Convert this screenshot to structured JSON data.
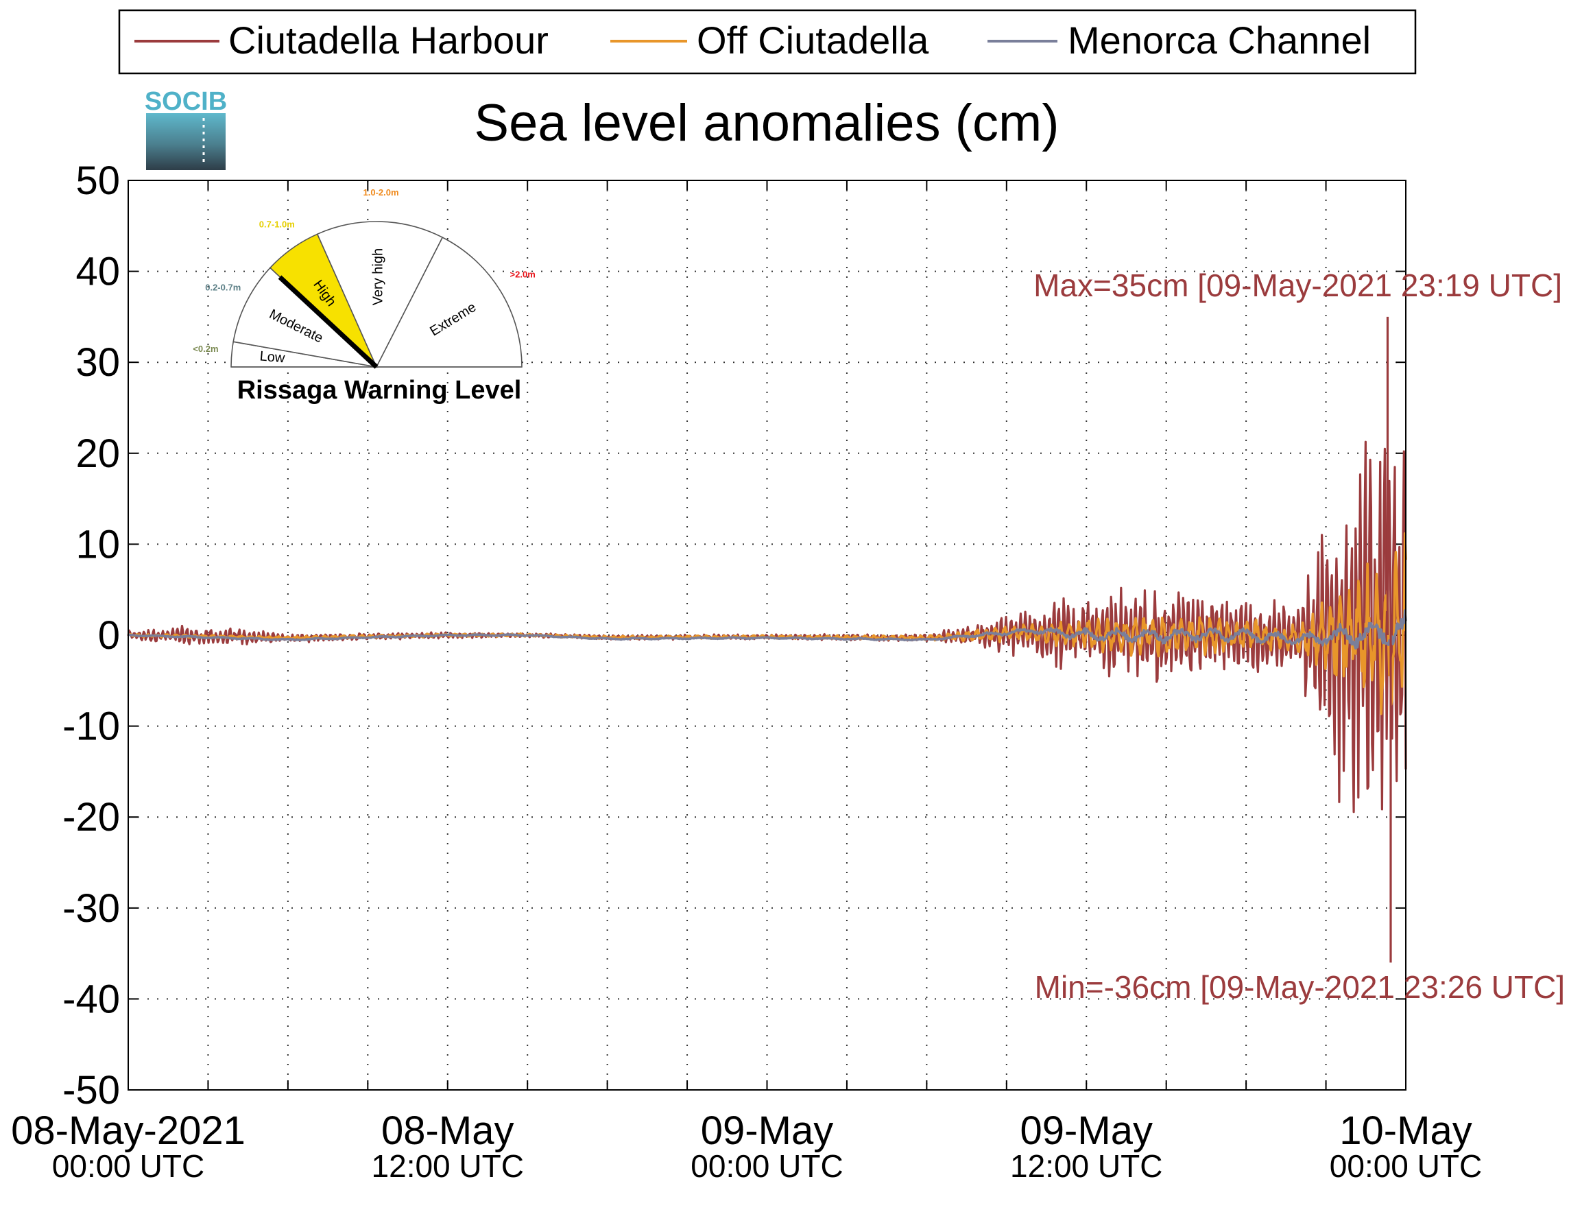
{
  "chart_data": {
    "type": "line",
    "title": "Sea level anomalies (cm)",
    "xlabel": "",
    "ylabel": "",
    "ylim": [
      -50,
      50
    ],
    "yticks": [
      50,
      40,
      30,
      20,
      10,
      0,
      -10,
      -20,
      -30,
      -40,
      -50
    ],
    "xlim": [
      "2021-05-08 00:00",
      "2021-05-10 00:00"
    ],
    "xticks": [
      {
        "line1": "08-May-2021",
        "line2": "00:00 UTC"
      },
      {
        "line1": "08-May",
        "line2": "12:00 UTC"
      },
      {
        "line1": "09-May",
        "line2": "00:00 UTC"
      },
      {
        "line1": "09-May",
        "line2": "12:00 UTC"
      },
      {
        "line1": "10-May",
        "line2": "00:00 UTC"
      }
    ],
    "grid": true,
    "legend_position": "top",
    "series": [
      {
        "name": "Ciutadella Harbour",
        "color": "#9b3b3d",
        "envelope": [
          [
            "2021-05-08 00:00",
            0.6
          ],
          [
            "2021-05-08 02:00",
            1.2
          ],
          [
            "2021-05-08 04:00",
            1.1
          ],
          [
            "2021-05-08 06:00",
            0.6
          ],
          [
            "2021-05-08 08:00",
            0.5
          ],
          [
            "2021-05-08 10:00",
            0.4
          ],
          [
            "2021-05-08 12:00",
            0.4
          ],
          [
            "2021-05-08 14:00",
            0.3
          ],
          [
            "2021-05-08 16:00",
            0.3
          ],
          [
            "2021-05-08 18:00",
            0.3
          ],
          [
            "2021-05-08 20:00",
            0.3
          ],
          [
            "2021-05-08 22:00",
            0.3
          ],
          [
            "2021-05-09 00:00",
            0.3
          ],
          [
            "2021-05-09 02:00",
            0.4
          ],
          [
            "2021-05-09 04:00",
            0.4
          ],
          [
            "2021-05-09 06:00",
            0.5
          ],
          [
            "2021-05-09 07:30",
            1.2
          ],
          [
            "2021-05-09 08:00",
            1.8
          ],
          [
            "2021-05-09 09:00",
            2.5
          ],
          [
            "2021-05-09 10:00",
            3.0
          ],
          [
            "2021-05-09 11:00",
            4.5
          ],
          [
            "2021-05-09 12:00",
            5.0
          ],
          [
            "2021-05-09 13:00",
            5.5
          ],
          [
            "2021-05-09 14:00",
            6.5
          ],
          [
            "2021-05-09 15:00",
            6.0
          ],
          [
            "2021-05-09 16:00",
            6.0
          ],
          [
            "2021-05-09 17:00",
            5.5
          ],
          [
            "2021-05-09 18:00",
            5.0
          ],
          [
            "2021-05-09 19:00",
            4.5
          ],
          [
            "2021-05-09 20:00",
            5.0
          ],
          [
            "2021-05-09 21:00",
            16.0
          ],
          [
            "2021-05-09 22:00",
            22.0
          ],
          [
            "2021-05-09 23:00",
            26.0
          ],
          [
            "2021-05-10 00:00",
            30.0
          ]
        ]
      },
      {
        "name": "Off Ciutadella",
        "color": "#e8962a",
        "envelope": [
          [
            "2021-05-08 00:00",
            0.2
          ],
          [
            "2021-05-09 00:00",
            0.2
          ],
          [
            "2021-05-09 06:00",
            0.3
          ],
          [
            "2021-05-09 08:00",
            0.8
          ],
          [
            "2021-05-09 10:00",
            1.2
          ],
          [
            "2021-05-09 12:00",
            2.0
          ],
          [
            "2021-05-09 14:00",
            3.0
          ],
          [
            "2021-05-09 16:00",
            2.5
          ],
          [
            "2021-05-09 18:00",
            2.0
          ],
          [
            "2021-05-09 20:00",
            2.0
          ],
          [
            "2021-05-09 21:00",
            5.0
          ],
          [
            "2021-05-09 22:00",
            8.0
          ],
          [
            "2021-05-09 23:00",
            11.0
          ],
          [
            "2021-05-10 00:00",
            12.0
          ]
        ]
      },
      {
        "name": "Menorca Channel",
        "color": "#7a7f9a",
        "envelope": [
          [
            "2021-05-08 00:00",
            0.1
          ],
          [
            "2021-05-09 06:00",
            0.1
          ],
          [
            "2021-05-09 10:00",
            0.4
          ],
          [
            "2021-05-09 12:00",
            0.8
          ],
          [
            "2021-05-09 16:00",
            1.0
          ],
          [
            "2021-05-09 20:00",
            0.8
          ],
          [
            "2021-05-09 22:00",
            1.5
          ],
          [
            "2021-05-10 00:00",
            2.5
          ]
        ]
      }
    ],
    "baseline": [
      [
        "2021-05-08 00:00",
        0
      ],
      [
        "2021-05-08 06:00",
        -0.5
      ],
      [
        "2021-05-08 12:00",
        0.0
      ],
      [
        "2021-05-08 15:00",
        0.0
      ],
      [
        "2021-05-08 18:00",
        -0.4
      ],
      [
        "2021-05-09 00:00",
        -0.3
      ],
      [
        "2021-05-09 06:00",
        -0.5
      ],
      [
        "2021-05-09 08:00",
        0.0
      ],
      [
        "2021-05-09 10:00",
        0.5
      ],
      [
        "2021-05-09 12:00",
        0.0
      ],
      [
        "2021-05-09 18:00",
        0.0
      ],
      [
        "2021-05-09 20:00",
        -0.5
      ],
      [
        "2021-05-10 00:00",
        0.5
      ]
    ],
    "annotations": [
      {
        "text": "Max=35cm [09-May-2021 23:19 UTC]",
        "x": "2021-05-09 23:19",
        "y": 35
      },
      {
        "text": "Min=-36cm [09-May-2021 23:26 UTC]",
        "x": "2021-05-09 23:26",
        "y": -36
      }
    ],
    "annotation_color": "#9b3b3d"
  },
  "logo": {
    "text": "SOCIB",
    "color": "#4fb1c8"
  },
  "gauge": {
    "title": "Rissaga Warning Level",
    "current_level": "High",
    "highlight_color": "#f7e100",
    "sectors": [
      {
        "label": "Low",
        "range": "<0.2m",
        "range_color": "#7b8a52"
      },
      {
        "label": "Moderate",
        "range": "0.2-0.7m",
        "range_color": "#5b7f86"
      },
      {
        "label": "High",
        "range": "0.7-1.0m",
        "range_color": "#e6cf00"
      },
      {
        "label": "Very high",
        "range": "1.0-2.0m",
        "range_color": "#f08a1c"
      },
      {
        "label": "Extreme",
        "range": ">2.0m",
        "range_color": "#e8131a"
      }
    ]
  }
}
